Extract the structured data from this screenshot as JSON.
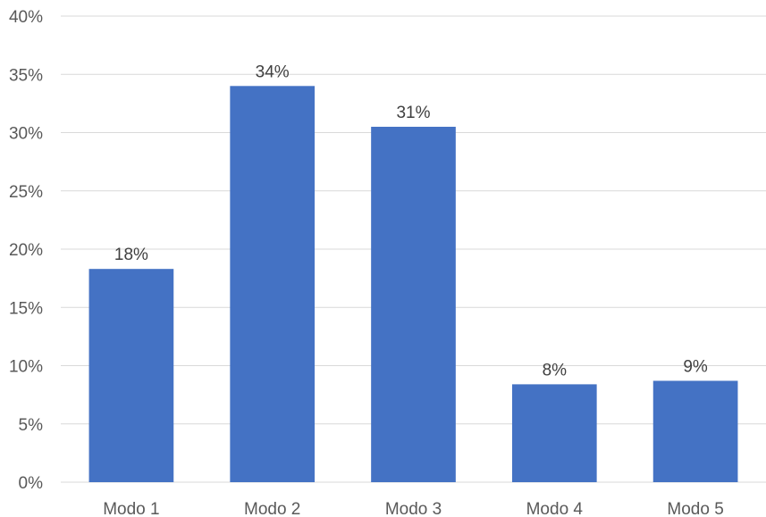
{
  "chart_data": {
    "type": "bar",
    "title": "",
    "xlabel": "",
    "ylabel": "",
    "categories": [
      "Modo 1",
      "Modo 2",
      "Modo 3",
      "Modo 4",
      "Modo 5"
    ],
    "values": [
      18.3,
      34.0,
      30.5,
      8.4,
      8.7
    ],
    "data_labels": [
      "18%",
      "34%",
      "31%",
      "8%",
      "9%"
    ],
    "ylim": [
      0,
      40
    ],
    "yticks": [
      0,
      5,
      10,
      15,
      20,
      25,
      30,
      35,
      40
    ],
    "ytick_labels": [
      "0%",
      "5%",
      "10%",
      "15%",
      "20%",
      "25%",
      "30%",
      "35%",
      "40%"
    ],
    "grid": true,
    "legend": "none",
    "bar_color": "#4472C4"
  }
}
